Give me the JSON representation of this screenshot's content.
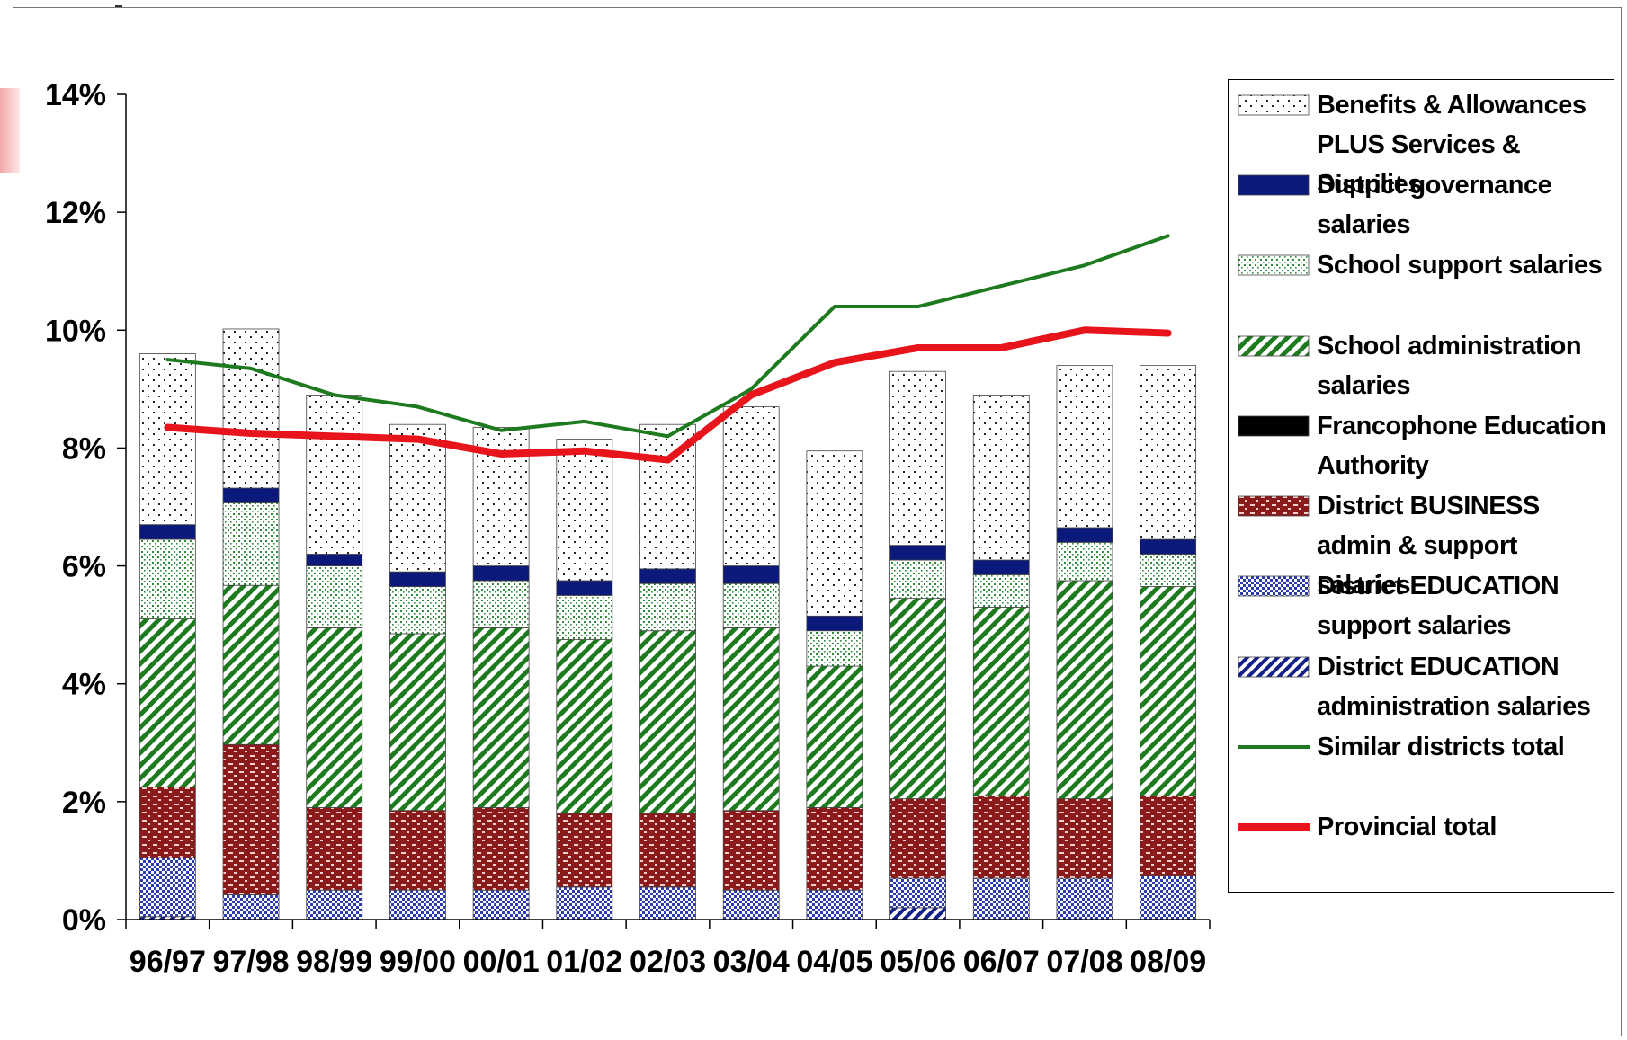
{
  "chart_data": {
    "type": "bar",
    "stacked": true,
    "categories": [
      "96/97",
      "97/98",
      "98/99",
      "99/00",
      "00/01",
      "01/02",
      "02/03",
      "03/04",
      "04/05",
      "05/06",
      "06/07",
      "07/08",
      "08/09"
    ],
    "ylim": [
      0,
      14
    ],
    "yticks": [
      "0%",
      "2%",
      "4%",
      "6%",
      "8%",
      "10%",
      "12%",
      "14%"
    ],
    "grid": false,
    "legend_position": "right",
    "series": [
      {
        "name": "District EDUCATION administration salaries",
        "key": "dea",
        "kind": "bar",
        "values": [
          0.05,
          0,
          0,
          0,
          0,
          0,
          0,
          0,
          0,
          0.2,
          0,
          0,
          0
        ]
      },
      {
        "name": "District EDUCATION support salaries",
        "key": "des",
        "kind": "bar",
        "values": [
          1.0,
          0.42,
          0.5,
          0.5,
          0.5,
          0.55,
          0.55,
          0.5,
          0.5,
          0.5,
          0.7,
          0.7,
          0.75
        ]
      },
      {
        "name": "District BUSINESS admin & support salaries",
        "key": "dba",
        "kind": "bar",
        "values": [
          1.2,
          2.55,
          1.4,
          1.35,
          1.4,
          1.25,
          1.25,
          1.35,
          1.4,
          1.35,
          1.4,
          1.35,
          1.35
        ]
      },
      {
        "name": "Francophone Education Authority",
        "key": "fea",
        "kind": "bar",
        "values": [
          0,
          0,
          0,
          0,
          0,
          0,
          0,
          0,
          0,
          0,
          0,
          0,
          0
        ]
      },
      {
        "name": "School administration salaries",
        "key": "sas",
        "kind": "bar",
        "values": [
          2.85,
          2.7,
          3.05,
          3.0,
          3.05,
          2.95,
          3.1,
          3.1,
          2.4,
          3.4,
          3.2,
          3.7,
          3.55
        ]
      },
      {
        "name": "School support salaries",
        "key": "ssp",
        "kind": "bar",
        "values": [
          1.35,
          1.4,
          1.05,
          0.8,
          0.8,
          0.75,
          0.8,
          0.75,
          0.6,
          0.65,
          0.55,
          0.65,
          0.55
        ]
      },
      {
        "name": "District governance salaries",
        "key": "dgs",
        "kind": "bar",
        "values": [
          0.25,
          0.25,
          0.2,
          0.25,
          0.25,
          0.25,
          0.25,
          0.3,
          0.25,
          0.25,
          0.25,
          0.25,
          0.25
        ]
      },
      {
        "name": "Benefits & Allowances PLUS Services & Supplies",
        "key": "bas",
        "kind": "bar",
        "values": [
          2.9,
          2.7,
          2.7,
          2.5,
          2.35,
          2.4,
          2.45,
          2.7,
          2.8,
          2.95,
          2.8,
          2.75,
          2.95
        ]
      },
      {
        "name": "Similar districts total",
        "key": "sim",
        "kind": "line",
        "color": "#1e7a1e",
        "values": [
          9.5,
          9.35,
          8.9,
          8.7,
          8.3,
          8.45,
          8.2,
          9.0,
          10.4,
          10.4,
          10.75,
          11.1,
          11.6
        ]
      },
      {
        "name": "Provincial total",
        "key": "prov",
        "kind": "line",
        "color": "#e8141b",
        "values": [
          8.35,
          8.25,
          8.2,
          8.15,
          7.9,
          7.95,
          7.8,
          8.9,
          9.45,
          9.7,
          9.7,
          10.0,
          9.95
        ]
      }
    ]
  },
  "legend": {
    "items": [
      {
        "key": "bas",
        "label": "Benefits & Allowances PLUS Services & Supplies"
      },
      {
        "key": "dgs",
        "label": "District governance salaries"
      },
      {
        "key": "ssp",
        "label": "School support salaries"
      },
      {
        "key": "sas",
        "label": "School administration salaries"
      },
      {
        "key": "fea",
        "label": "Francophone Education Authority"
      },
      {
        "key": "dba",
        "label": "District BUSINESS admin & support salaries"
      },
      {
        "key": "des",
        "label": "District EDUCATION support salaries"
      },
      {
        "key": "dea",
        "label": "District EDUCATION administration salaries"
      },
      {
        "key": "sim",
        "label": "Similar districts total"
      },
      {
        "key": "prov",
        "label": "Provincial total"
      }
    ]
  },
  "colors": {
    "similar_line": "#1e7a1e",
    "provincial_line": "#e8141b",
    "business_fill": "#8b1a1a",
    "governance_fill": "#0b1a7a",
    "school_admin_fill": "#1e7a1e"
  }
}
